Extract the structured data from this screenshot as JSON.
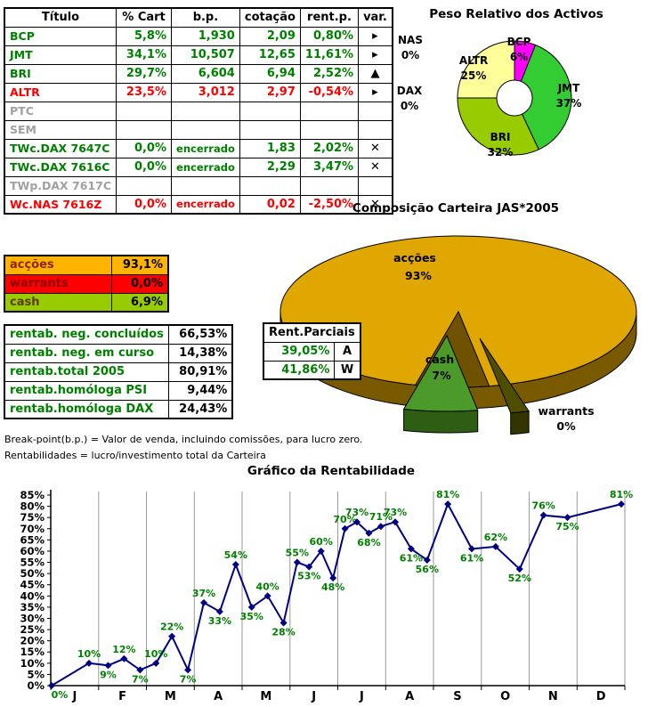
{
  "main_table": {
    "headers": [
      "Título",
      "% Cart",
      "b.p.",
      "cotação",
      "rent.p.",
      "var."
    ],
    "rows": [
      {
        "titulo": "BCP",
        "cart": "5,8%",
        "bp": "1,930",
        "cotacao": "2,09",
        "rentp": "0,80%",
        "var": "arrow-right",
        "color": "green"
      },
      {
        "titulo": "JMT",
        "cart": "34,1%",
        "bp": "10,507",
        "cotacao": "12,65",
        "rentp": "11,61%",
        "var": "arrow-right",
        "color": "green"
      },
      {
        "titulo": "BRI",
        "cart": "29,7%",
        "bp": "6,604",
        "cotacao": "6,94",
        "rentp": "2,52%",
        "var": "arrow-up",
        "color": "green"
      },
      {
        "titulo": "ALTR",
        "cart": "23,5%",
        "bp": "3,012",
        "cotacao": "2,97",
        "rentp": "-0,54%",
        "var": "arrow-right",
        "color": "red"
      },
      {
        "titulo": "PTC",
        "cart": "",
        "bp": "",
        "cotacao": "",
        "rentp": "",
        "var": "",
        "color": "gray"
      },
      {
        "titulo": "SEM",
        "cart": "",
        "bp": "",
        "cotacao": "",
        "rentp": "",
        "var": "",
        "color": "gray"
      },
      {
        "titulo": "TWc.DAX 7647C",
        "cart": "0,0%",
        "bp": "encerrado",
        "cotacao": "1,83",
        "rentp": "2,02%",
        "var": "x-mark",
        "color": "green"
      },
      {
        "titulo": "TWc.DAX 7616C",
        "cart": "0,0%",
        "bp": "encerrado",
        "cotacao": "2,29",
        "rentp": "3,47%",
        "var": "x-mark",
        "color": "green"
      },
      {
        "titulo": "TWp.DAX 7617C",
        "cart": "",
        "bp": "",
        "cotacao": "",
        "rentp": "",
        "var": "",
        "color": "gray"
      },
      {
        "titulo": "Wc.NAS 7616Z",
        "cart": "0,0%",
        "bp": "encerrado",
        "cotacao": "0,02",
        "rentp": "-2,50%",
        "var": "x-mark",
        "color": "red"
      }
    ]
  },
  "allocation_table": {
    "rows": [
      {
        "label": "acções",
        "value": "93,1%",
        "bg": "#FFB400",
        "label_color": "#8B2500"
      },
      {
        "label": "warrants",
        "value": "0,0%",
        "bg": "#FF0000",
        "label_color": "#8B0000"
      },
      {
        "label": "cash",
        "value": "6,9%",
        "bg": "#99CC00",
        "label_color": "#5B3A00"
      }
    ]
  },
  "rentab_table": {
    "rows": [
      {
        "label": "rentab. neg. concluídos",
        "value": "66,53%"
      },
      {
        "label": "rentab. neg. em curso",
        "value": "14,38%"
      },
      {
        "label": "rentab.total 2005",
        "value": "80,91%"
      },
      {
        "label": "rentab.homóloga PSI",
        "value": "9,44%"
      },
      {
        "label": "rentab.homóloga DAX",
        "value": "24,43%"
      }
    ]
  },
  "parciais_table": {
    "header": "Rent.Parciais",
    "rows": [
      {
        "value": "39,05%",
        "tag": "A"
      },
      {
        "value": "41,86%",
        "tag": "W"
      }
    ]
  },
  "notes": [
    "Break-point(b.p.) = Valor de venda, incluindo comissões, para lucro zero.",
    "Rentabilidades = lucro/investimento total da Carteira"
  ],
  "chart_data": [
    {
      "id": "donut",
      "type": "pie",
      "title": "Peso Relativo dos Activos",
      "labels": [
        "BCP",
        "JMT",
        "BRI",
        "ALTR",
        "DAX",
        "NAS"
      ],
      "values": [
        6,
        37,
        32,
        25,
        0,
        0
      ],
      "value_labels": [
        "6%",
        "37%",
        "32%",
        "25%",
        "0%",
        "0%"
      ],
      "colors": [
        "#FF00FF",
        "#33CC33",
        "#99CC00",
        "#FFFF99",
        "#FFFFFF",
        "#FFFFFF"
      ],
      "donut_hole": true,
      "legend_position": "none",
      "labels_on_chart": true
    },
    {
      "id": "pie3d",
      "type": "pie",
      "title": "Composição Carteira JAS*2005",
      "labels": [
        "acções",
        "cash",
        "warrants"
      ],
      "values": [
        93,
        7,
        0
      ],
      "value_labels": [
        "93%",
        "7%",
        "0%"
      ],
      "colors": [
        "#DFA700",
        "#4C9A2A",
        "#4E4E00"
      ],
      "effect": "3d",
      "exploded": [
        "cash",
        "warrants"
      ],
      "legend_position": "none"
    },
    {
      "id": "rentline",
      "type": "line",
      "title": "Gráfico da Rentabilidade",
      "x_tick_labels": [
        "J",
        "F",
        "M",
        "A",
        "M",
        "J",
        "J",
        "A",
        "S",
        "O",
        "N",
        "D"
      ],
      "monthly_values": [
        [
          0,
          10
        ],
        [
          9,
          12,
          7
        ],
        [
          10,
          22,
          7
        ],
        [
          37,
          33,
          54
        ],
        [
          35,
          40,
          28
        ],
        [
          55,
          53,
          60,
          48
        ],
        [
          70,
          73,
          68,
          71
        ],
        [
          73,
          61,
          56
        ],
        [
          81,
          61
        ],
        [
          62,
          52
        ],
        [
          76,
          75
        ],
        [
          81
        ]
      ],
      "values": [
        0,
        10,
        9,
        12,
        7,
        10,
        22,
        7,
        37,
        33,
        54,
        35,
        40,
        28,
        55,
        53,
        60,
        48,
        70,
        73,
        68,
        71,
        73,
        61,
        56,
        81,
        61,
        62,
        52,
        76,
        75,
        81
      ],
      "point_labels": [
        "0%",
        "10%",
        "9%",
        "12%",
        "7%",
        "10%",
        "22%",
        "7%",
        "37%",
        "33%",
        "54%",
        "35%",
        "40%",
        "28%",
        "55%",
        "53%",
        "60%",
        "48%",
        "70%",
        "73%",
        "68%",
        "71%",
        "73%",
        "61%",
        "56%",
        "81%",
        "61%",
        "62%",
        "52%",
        "76%",
        "75%",
        "81%"
      ],
      "ylim": [
        0,
        85
      ],
      "ytick_step": 5,
      "grid": "vertical-month-lines",
      "line_color": "#000080",
      "label_color": "#008000"
    }
  ]
}
